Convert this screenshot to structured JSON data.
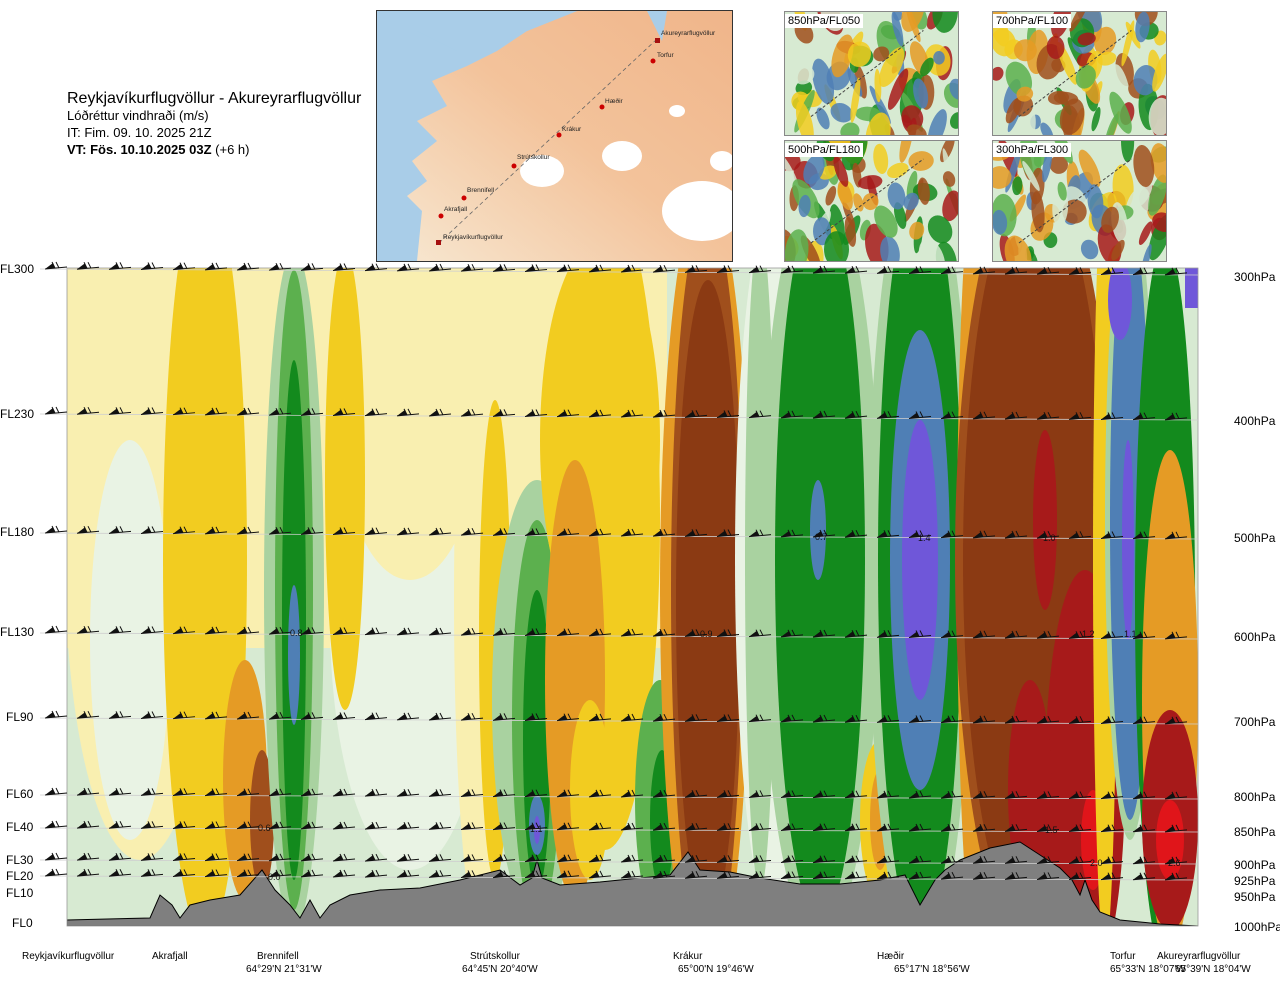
{
  "header": {
    "route": "Reykjavíkurflugvöllur - Akureyrarflugvöllur",
    "variable": "Lóðréttur vindhraði (m/s)",
    "init_time": "IT: Fim. 09. 10. 2025 21Z",
    "valid_prefix": "VT: Fös. 10.10.2025 03Z",
    "valid_suffix": "(+6 h)"
  },
  "route_map": {
    "points": [
      "Akureyrarflugvöllur",
      "Torfur",
      "Hæðir",
      "Krákur",
      "Strútskollur",
      "Brennifell",
      "Akrafjall",
      "Reykjavíkurflugvöllur"
    ]
  },
  "mini_maps": [
    {
      "label": "850hPa/FL050"
    },
    {
      "label": "700hPa/FL100"
    },
    {
      "label": "500hPa/FL180"
    },
    {
      "label": "300hPa/FL300"
    }
  ],
  "colors": {
    "terrain": "#7f7f7f",
    "pale_yellow": "#f9efb0",
    "yellow": "#f2cc20",
    "orange": "#e59b25",
    "brown": "#a04f1c",
    "dark_brown": "#8b3a13",
    "red": "#a71a1a",
    "bright_red": "#e0151a",
    "pale_green": "#d7ead2",
    "light_green": "#a9d2a0",
    "mid_green": "#5cb04e",
    "green": "#138a1d",
    "steel_blue": "#4f7fb5",
    "violet": "#6f57d9"
  },
  "chart_data": {
    "type": "heatmap",
    "title": "Lóðréttur vindhraði (m/s)",
    "x_stations": [
      "Reykjavíkurflugvöllur",
      "Akrafjall",
      "Brennifell",
      "Strútskollur",
      "Krákur",
      "Hæðir",
      "Torfur",
      "Akureyrarflugvöllur"
    ],
    "x_coordinates": [
      "",
      "",
      "64°29'N 21°31'W",
      "64°45'N 20°40'W",
      "65°00'N 19°46'W",
      "65°17'N 18°56'W",
      "65°33'N 18°07'W",
      "65°39'N 18°04'W"
    ],
    "y_flight_levels": [
      "FL300",
      "FL230",
      "FL180",
      "FL130",
      "FL90",
      "FL60",
      "FL40",
      "FL30",
      "FL20",
      "FL10",
      "FL0"
    ],
    "y_pressure_levels": [
      "300hPa",
      "400hPa",
      "500hPa",
      "600hPa",
      "700hPa",
      "800hPa",
      "850hPa",
      "900hPa",
      "925hPa",
      "950hPa",
      "1000hPa"
    ],
    "value_labels": [
      "0.8",
      "0.6",
      "0.0",
      "1.1",
      "0.9",
      "0.7",
      "1.4",
      "1.0",
      "1.2",
      "1.1",
      "1.5",
      "2.0",
      "2.6"
    ],
    "legend": "none",
    "grid": "horizontal lines at flight levels"
  }
}
